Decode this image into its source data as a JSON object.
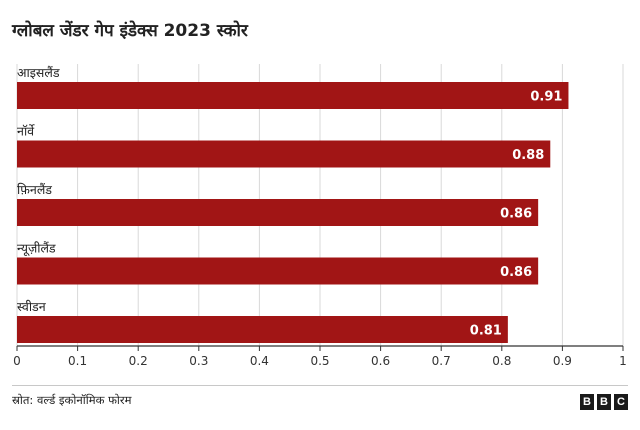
{
  "title": "ग्लोबल जेंडर गेप इंडेक्स 2023 स्कोर",
  "source": "स्रोत: वर्ल्ड इकोनॉमिक फोरम",
  "brand_letters": [
    "B",
    "B",
    "C"
  ],
  "colors": {
    "bar": "#a11515",
    "value_text": "#ffffff",
    "grid": "#d9d9d9",
    "axis": "#333333"
  },
  "chart_data": {
    "type": "bar",
    "orientation": "horizontal",
    "categories": [
      "आइसलैंड",
      "नॉर्वे",
      "फ़िनलैंड",
      "न्यूज़ीलैंड",
      "स्वीडन"
    ],
    "values": [
      0.91,
      0.88,
      0.86,
      0.86,
      0.81
    ],
    "value_labels": [
      "0.91",
      "0.88",
      "0.86",
      "0.86",
      "0.81"
    ],
    "xlim": [
      0,
      1
    ],
    "x_ticks": [
      "0",
      "0.1",
      "0.2",
      "0.3",
      "0.4",
      "0.5",
      "0.6",
      "0.7",
      "0.8",
      "0.9",
      "1"
    ],
    "grid": true,
    "legend": false
  }
}
